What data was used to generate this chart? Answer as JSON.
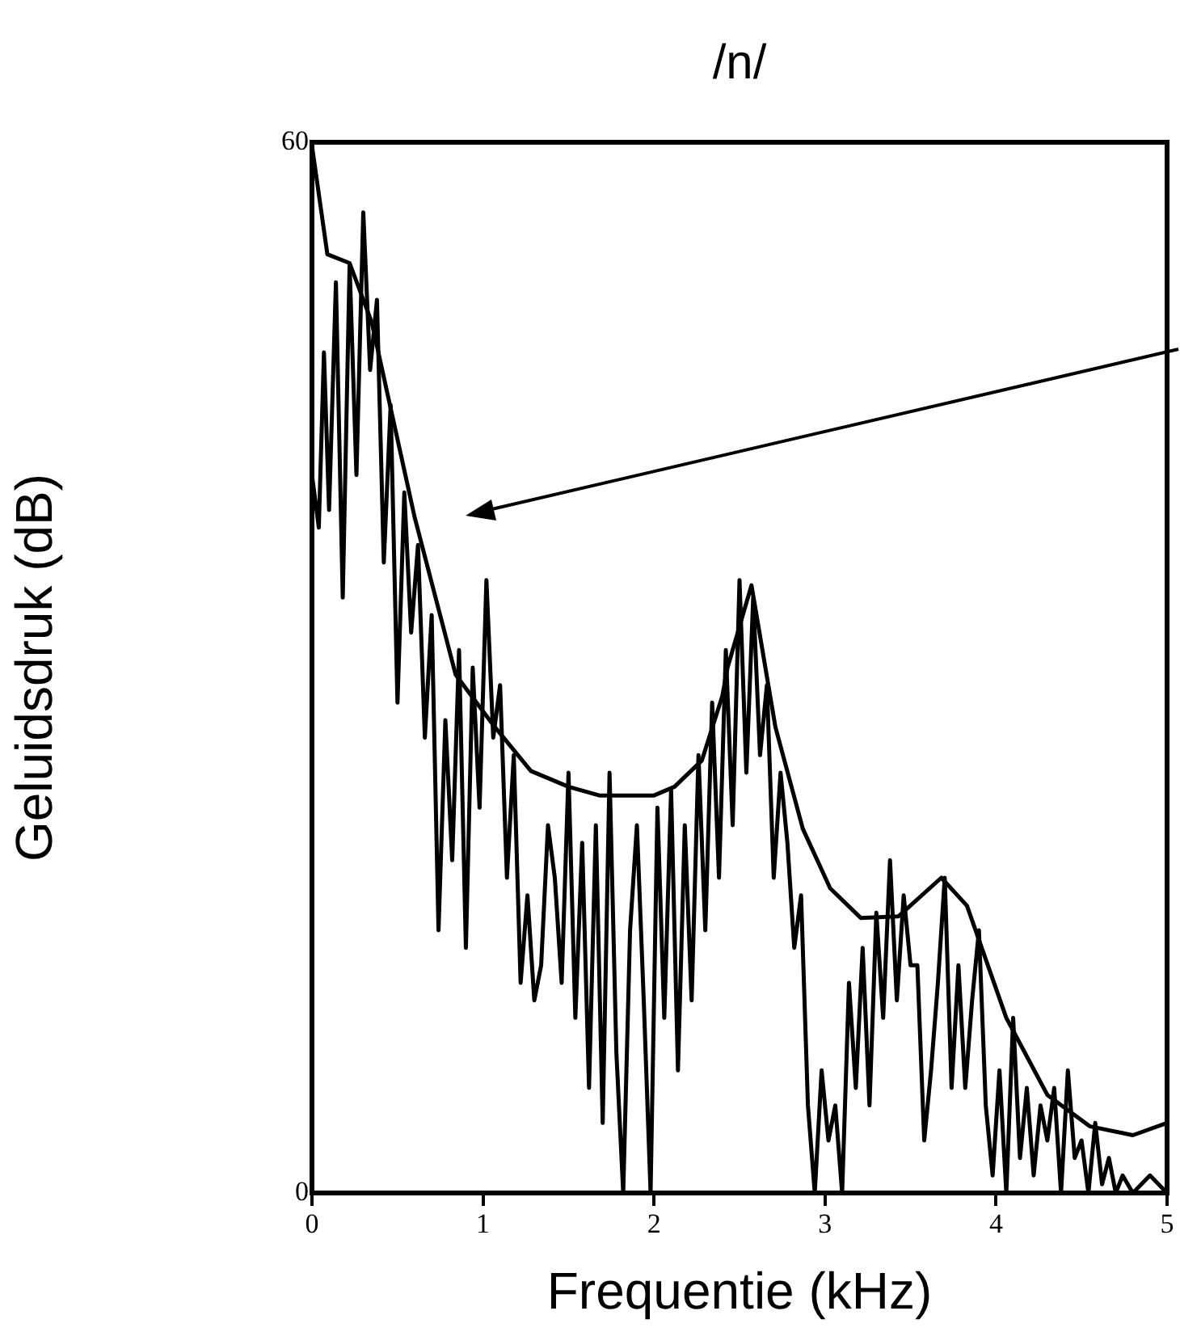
{
  "chart_data": {
    "type": "line",
    "title": "/n/",
    "xlabel": "Frequentie (kHz)",
    "ylabel": "Geluidsdruk (dB)",
    "xlim": [
      0,
      5
    ],
    "xticks": [
      0,
      1,
      2,
      3,
      4,
      5
    ],
    "ylim": [
      0,
      60
    ],
    "yticks": [
      0,
      60
    ],
    "grid": false,
    "legend": false,
    "marker": "none",
    "line_style": "solid",
    "series": [
      {
        "color": "#000000",
        "x": [
          0,
          0.04,
          0.07,
          0.1,
          0.14,
          0.18,
          0.22,
          0.26,
          0.3,
          0.34,
          0.38,
          0.42,
          0.46,
          0.5,
          0.54,
          0.58,
          0.62,
          0.66,
          0.7,
          0.74,
          0.78,
          0.82,
          0.86,
          0.9,
          0.94,
          0.98,
          1.02,
          1.06,
          1.1,
          1.14,
          1.18,
          1.22,
          1.26,
          1.3,
          1.34,
          1.38,
          1.42,
          1.46,
          1.5,
          1.54,
          1.58,
          1.62,
          1.66,
          1.7,
          1.74,
          1.78,
          1.82,
          1.86,
          1.9,
          1.94,
          1.98,
          2.02,
          2.06,
          2.1,
          2.14,
          2.18,
          2.22,
          2.26,
          2.3,
          2.34,
          2.38,
          2.42,
          2.46,
          2.5,
          2.54,
          2.58,
          2.62,
          2.66,
          2.7,
          2.74,
          2.78,
          2.82,
          2.86,
          2.9,
          2.94,
          2.98,
          3.02,
          3.06,
          3.1,
          3.14,
          3.18,
          3.22,
          3.26,
          3.3,
          3.34,
          3.38,
          3.42,
          3.46,
          3.5,
          3.54,
          3.58,
          3.62,
          3.66,
          3.7,
          3.74,
          3.78,
          3.82,
          3.86,
          3.9,
          3.94,
          3.98,
          4.02,
          4.06,
          4.1,
          4.14,
          4.18,
          4.22,
          4.26,
          4.3,
          4.34,
          4.38,
          4.42,
          4.46,
          4.5,
          4.54,
          4.58,
          4.62,
          4.66,
          4.7,
          4.74,
          4.8,
          4.9,
          5
        ],
        "values": [
          41,
          38,
          48,
          39,
          52,
          34,
          53,
          41,
          56,
          47,
          51,
          36,
          45,
          28,
          40,
          32,
          37,
          26,
          33,
          15,
          27,
          19,
          31,
          14,
          30,
          22,
          35,
          26,
          29,
          18,
          25,
          12,
          17,
          11,
          13,
          21,
          18,
          12,
          24,
          10,
          20,
          6,
          21,
          4,
          24,
          8,
          0,
          15,
          21,
          11,
          0,
          22,
          10,
          23,
          7,
          21,
          11,
          25,
          15,
          28,
          18,
          31,
          21,
          35,
          24,
          34,
          25,
          29,
          18,
          24,
          20,
          14,
          17,
          5,
          0,
          7,
          3,
          5,
          0,
          12,
          6,
          14,
          5,
          16,
          10,
          19,
          11,
          17,
          13,
          13,
          3,
          7,
          12,
          18,
          6,
          13,
          6,
          11,
          15,
          5,
          1,
          7,
          0,
          10,
          2,
          6,
          1,
          5,
          3,
          6,
          0,
          7,
          2,
          3,
          0,
          4,
          0.5,
          2,
          0,
          1,
          0,
          1,
          0
        ]
      },
      {
        "color": "#000000",
        "x": [
          0,
          0.09,
          0.22,
          0.35,
          0.6,
          0.84,
          1.07,
          1.28,
          1.5,
          1.68,
          2,
          2.12,
          2.28,
          2.4,
          2.43,
          2.57,
          2.71,
          2.87,
          3.03,
          3.21,
          3.43,
          3.68,
          3.83,
          4.06,
          4.3,
          4.55,
          4.8,
          5
        ],
        "values": [
          59.8,
          53.6,
          53.1,
          49.7,
          38.6,
          29.6,
          26.6,
          24.1,
          23.2,
          22.7,
          22.7,
          23.2,
          24.7,
          28.4,
          30,
          34.7,
          26.6,
          20.8,
          17.4,
          15.7,
          15.8,
          18,
          16.4,
          10,
          5.6,
          3.8,
          3.3,
          4
        ]
      }
    ]
  }
}
